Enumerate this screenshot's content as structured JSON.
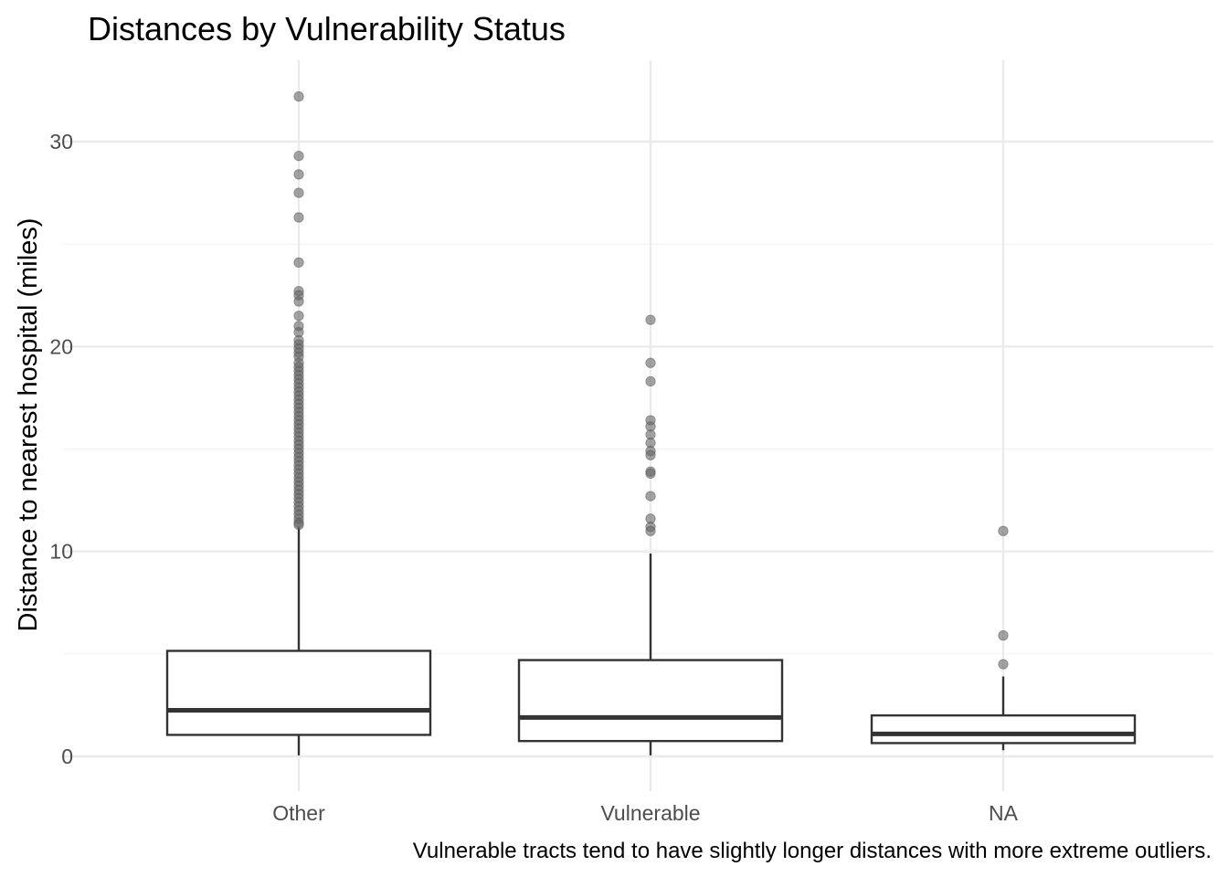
{
  "chart_data": {
    "type": "box",
    "title": "Distances by Vulnerability Status",
    "ylabel": "Distance to nearest hospital (miles)",
    "xlabel": "",
    "caption": "Vulnerable tracts tend to have slightly longer distances with more extreme outliers.",
    "categories": [
      "Other",
      "Vulnerable",
      "NA"
    ],
    "y_ticks": [
      0,
      10,
      20,
      30
    ],
    "y_tick_labels": [
      "0",
      "10",
      "20",
      "30"
    ],
    "ylim": [
      -1.6,
      34.1
    ],
    "grid": true,
    "colors": {
      "box_line": "#333333",
      "box_fill": "#ffffff",
      "outlier": "#666666",
      "grid_major": "#ebebeb",
      "grid_minor": "#f2f2f2"
    },
    "boxes": [
      {
        "category": "Other",
        "whisker_low": 0.05,
        "q1": 1.05,
        "median": 2.25,
        "q3": 5.15,
        "whisker_high": 11.2,
        "outliers": [
          32.2,
          29.3,
          28.4,
          27.5,
          26.3,
          24.1,
          22.7,
          22.5,
          22.2,
          21.5,
          21.0,
          20.7,
          20.3,
          20.1,
          19.9,
          19.7,
          19.5,
          19.2,
          19.0,
          18.8,
          18.6,
          18.4,
          18.2,
          18.0,
          17.8,
          17.6,
          17.4,
          17.2,
          17.0,
          16.8,
          16.6,
          16.4,
          16.2,
          16.0,
          15.8,
          15.6,
          15.4,
          15.2,
          15.0,
          14.8,
          14.6,
          14.4,
          14.2,
          14.0,
          13.8,
          13.6,
          13.4,
          13.2,
          13.0,
          12.8,
          12.6,
          12.4,
          12.2,
          12.0,
          11.8,
          11.6,
          11.4,
          11.3
        ]
      },
      {
        "category": "Vulnerable",
        "whisker_low": 0.05,
        "q1": 0.75,
        "median": 1.9,
        "q3": 4.7,
        "whisker_high": 9.9,
        "outliers": [
          21.3,
          19.2,
          18.3,
          16.4,
          16.1,
          15.7,
          15.3,
          14.9,
          14.7,
          13.9,
          13.8,
          12.7,
          11.6,
          11.2,
          11.0
        ]
      },
      {
        "category": "NA",
        "whisker_low": 0.3,
        "q1": 0.65,
        "median": 1.1,
        "q3": 2.0,
        "whisker_high": 3.9,
        "outliers": [
          11.0,
          5.9,
          4.5
        ]
      }
    ]
  }
}
